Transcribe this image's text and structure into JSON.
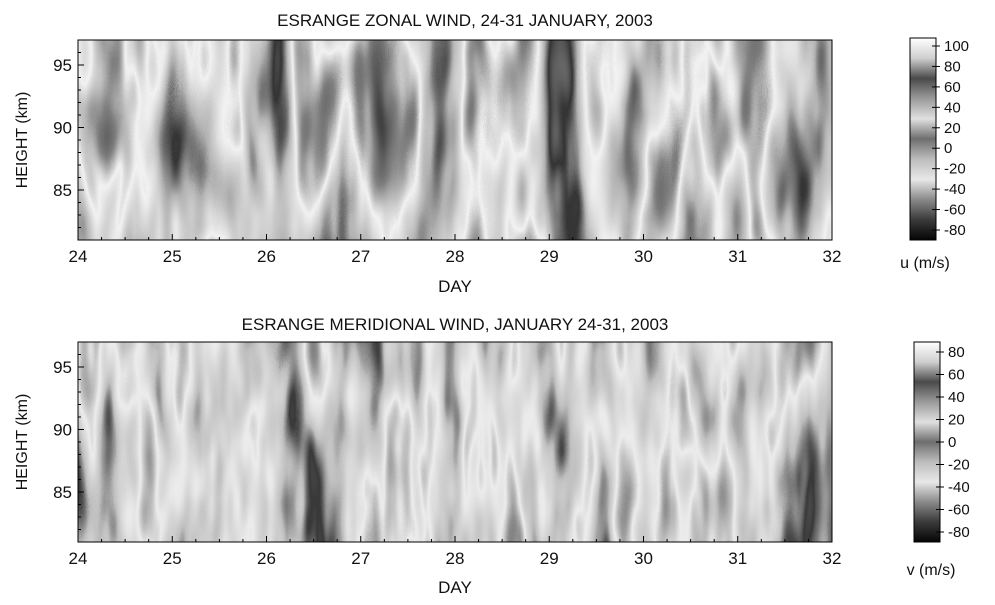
{
  "chart_data": [
    {
      "type": "heatmap",
      "title": "ESRANGE ZONAL WIND, 24-31 JANUARY, 2003",
      "xlabel": "DAY",
      "ylabel": "HEIGHT (km)",
      "xlim": [
        24,
        32
      ],
      "ylim": [
        81,
        97
      ],
      "x_ticks": [
        "24",
        "25",
        "26",
        "27",
        "28",
        "29",
        "30",
        "31",
        "32"
      ],
      "y_ticks": [
        "85",
        "90",
        "95"
      ],
      "colorbar": {
        "label": "u (m/s)",
        "range": [
          -90,
          110
        ],
        "ticks": [
          "100",
          "80",
          "60",
          "40",
          "20",
          "0",
          "-20",
          "-40",
          "-60",
          "-80"
        ],
        "colormap": "banded grayscale (white at top end, black at bottom end)"
      },
      "values": "dense banded gray contour field; individual values not labeled"
    },
    {
      "type": "heatmap",
      "title": "ESRANGE MERIDIONAL WIND, JANUARY 24-31, 2003",
      "xlabel": "DAY",
      "ylabel": "HEIGHT (km)",
      "xlim": [
        24,
        32
      ],
      "ylim": [
        81,
        97
      ],
      "x_ticks": [
        "24",
        "25",
        "26",
        "27",
        "28",
        "29",
        "30",
        "31",
        "32"
      ],
      "y_ticks": [
        "85",
        "90",
        "95"
      ],
      "colorbar": {
        "label": "v (m/s)",
        "range": [
          -90,
          90
        ],
        "ticks": [
          "80",
          "60",
          "40",
          "20",
          "0",
          "-20",
          "-40",
          "-60",
          "-80"
        ],
        "colormap": "banded grayscale (white at top end, black at bottom end)"
      },
      "values": "dense banded gray contour field; individual values not labeled"
    }
  ]
}
